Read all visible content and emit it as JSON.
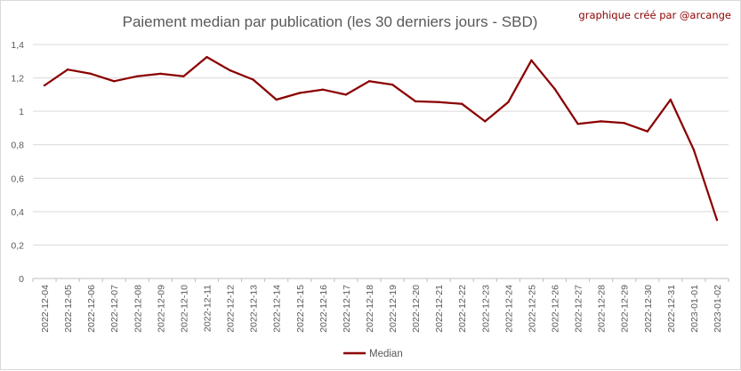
{
  "chart_data": {
    "type": "line",
    "title": "Paiement median par publication (les 30 derniers jours - SBD)",
    "annotation": "graphique créé par @arcange",
    "xlabel": "",
    "ylabel": "",
    "ylim": [
      0,
      1.4
    ],
    "yticks": [
      "0",
      "0,2",
      "0,4",
      "0,6",
      "0,8",
      "1",
      "1,2",
      "1,4"
    ],
    "grid": "horizontal",
    "legend_position": "bottom",
    "color": "#8b0000",
    "categories": [
      "2022-12-04",
      "2022-12-05",
      "2022-12-06",
      "2022-12-07",
      "2022-12-08",
      "2022-12-09",
      "2022-12-10",
      "2022-12-11",
      "2022-12-12",
      "2022-12-13",
      "2022-12-14",
      "2022-12-15",
      "2022-12-16",
      "2022-12-17",
      "2022-12-18",
      "2022-12-19",
      "2022-12-20",
      "2022-12-21",
      "2022-12-22",
      "2022-12-23",
      "2022-12-24",
      "2022-12-25",
      "2022-12-26",
      "2022-12-27",
      "2022-12-28",
      "2022-12-29",
      "2022-12-30",
      "2022-12-31",
      "2023-01-01",
      "2023-01-02"
    ],
    "series": [
      {
        "name": "Median",
        "values": [
          1.155,
          1.25,
          1.225,
          1.18,
          1.21,
          1.225,
          1.21,
          1.325,
          1.245,
          1.19,
          1.07,
          1.11,
          1.13,
          1.1,
          1.18,
          1.16,
          1.06,
          1.055,
          1.045,
          0.94,
          1.055,
          1.305,
          1.135,
          0.925,
          0.94,
          0.93,
          0.88,
          1.07,
          0.77,
          0.35
        ]
      }
    ]
  }
}
